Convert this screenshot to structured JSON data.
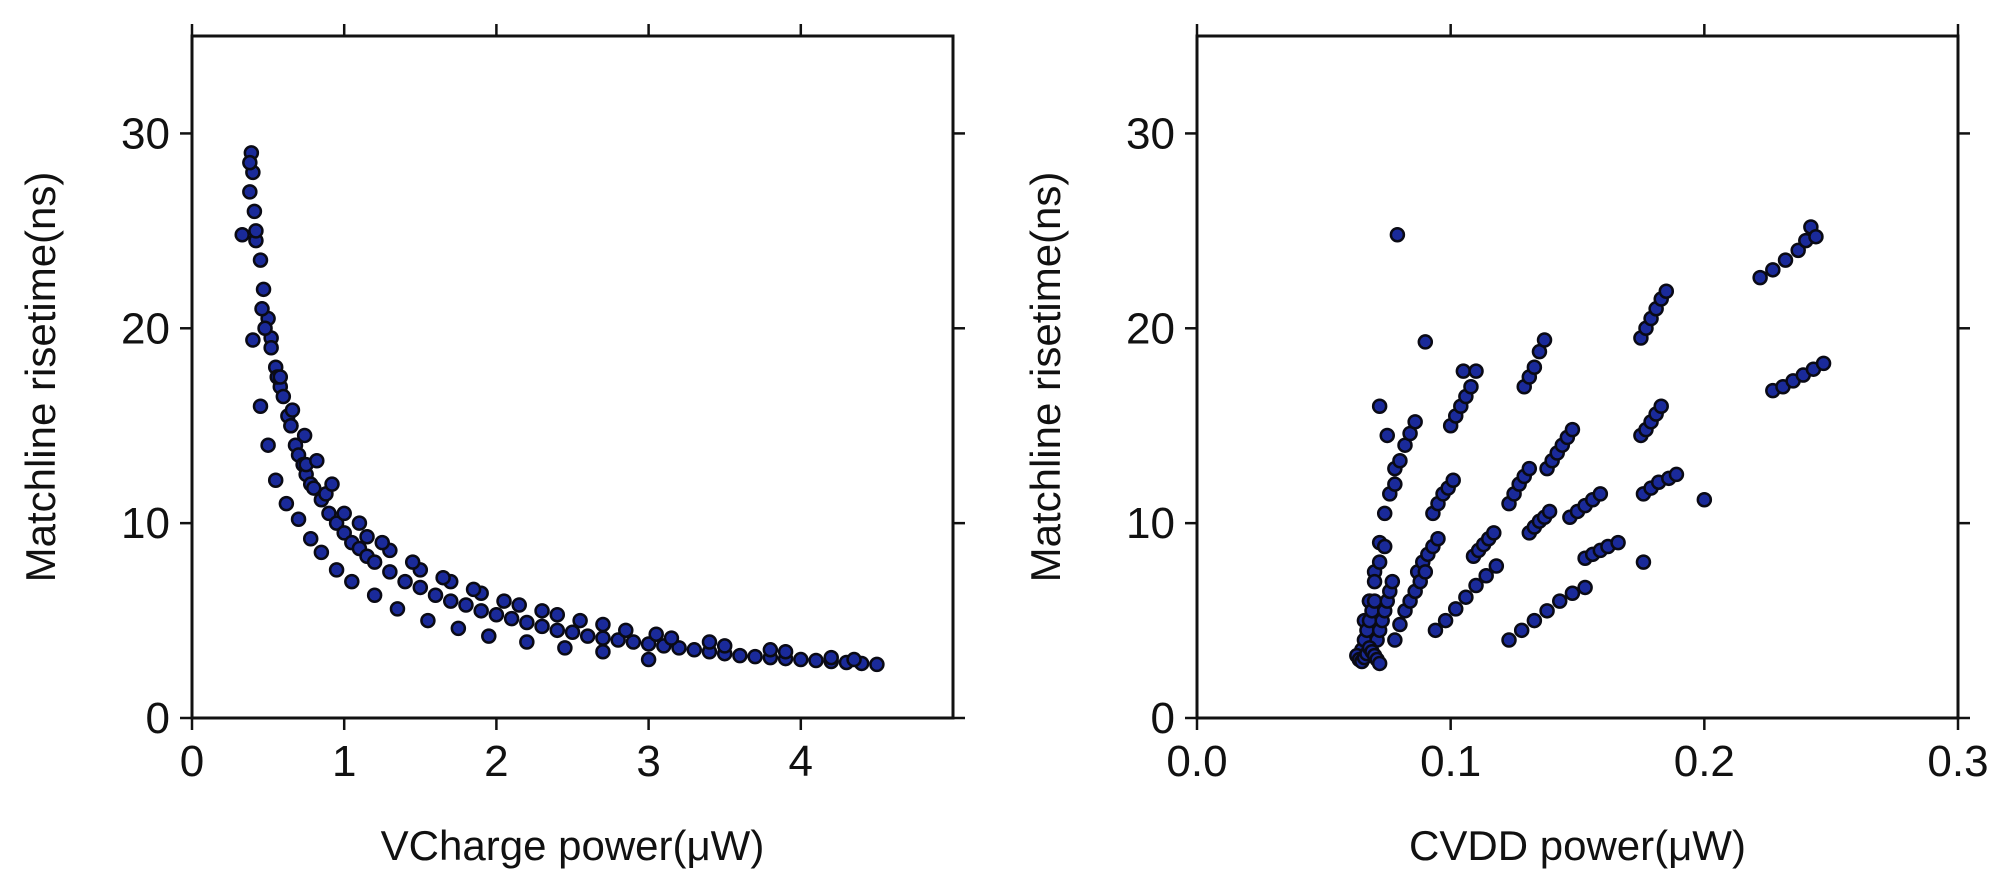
{
  "chart_data": [
    {
      "type": "scatter",
      "title": "",
      "xlabel": "VCharge power(μW)",
      "ylabel": "Matchline risetime(ns)",
      "xlim": [
        0,
        5
      ],
      "ylim": [
        0,
        35
      ],
      "xticks": [
        0,
        1,
        2,
        3,
        4
      ],
      "xtick_labels": [
        "0",
        "1",
        "2",
        "3",
        "4"
      ],
      "yticks": [
        0,
        10,
        20,
        30
      ],
      "ytick_labels": [
        "0",
        "10",
        "20",
        "30"
      ],
      "grid": false,
      "marker_fill": "#1a2a9a",
      "marker_edge": "#0a0a14",
      "series": [
        {
          "name": "points",
          "x": [
            0.33,
            0.38,
            0.39,
            0.4,
            0.41,
            0.42,
            0.45,
            0.47,
            0.5,
            0.52,
            0.55,
            0.58,
            0.6,
            0.63,
            0.65,
            0.68,
            0.7,
            0.73,
            0.75,
            0.78,
            0.8,
            0.85,
            0.9,
            0.95,
            1.0,
            1.05,
            1.1,
            1.15,
            1.2,
            1.3,
            1.4,
            1.5,
            1.6,
            1.7,
            1.8,
            1.9,
            2.0,
            2.1,
            2.2,
            2.3,
            2.4,
            2.5,
            2.6,
            2.7,
            2.8,
            2.9,
            3.0,
            3.1,
            3.2,
            3.3,
            3.4,
            3.5,
            3.6,
            3.7,
            3.8,
            3.9,
            4.0,
            4.1,
            4.2,
            4.3,
            4.4,
            4.5,
            0.4,
            0.45,
            0.5,
            0.55,
            0.62,
            0.7,
            0.78,
            0.85,
            0.95,
            1.05,
            1.2,
            1.35,
            1.55,
            1.75,
            1.95,
            2.2,
            2.45,
            2.7,
            3.0,
            0.48,
            0.56,
            0.65,
            0.75,
            0.88,
            1.0,
            1.15,
            1.3,
            1.5,
            1.7,
            1.9,
            2.15,
            2.4,
            2.7,
            3.05,
            3.4,
            3.8,
            4.2,
            0.38,
            0.42,
            0.46,
            0.52,
            0.58,
            0.66,
            0.74,
            0.82,
            0.92,
            1.1,
            1.25,
            1.45,
            1.65,
            1.85,
            2.05,
            2.3,
            2.55,
            2.85,
            3.15,
            3.5,
            3.9,
            4.35
          ],
          "y": [
            24.8,
            27.0,
            29.0,
            28.0,
            26.0,
            24.5,
            23.5,
            22.0,
            20.5,
            19.5,
            18.0,
            17.0,
            16.5,
            15.5,
            15.0,
            14.0,
            13.5,
            13.0,
            12.5,
            12.0,
            11.8,
            11.2,
            10.5,
            10.0,
            9.5,
            9.0,
            8.7,
            8.3,
            8.0,
            7.5,
            7.0,
            6.7,
            6.3,
            6.0,
            5.8,
            5.5,
            5.3,
            5.1,
            4.9,
            4.7,
            4.5,
            4.4,
            4.2,
            4.1,
            4.0,
            3.9,
            3.8,
            3.7,
            3.6,
            3.5,
            3.4,
            3.3,
            3.2,
            3.15,
            3.1,
            3.05,
            3.0,
            2.95,
            2.9,
            2.85,
            2.8,
            2.75,
            19.4,
            16.0,
            14.0,
            12.2,
            11.0,
            10.2,
            9.2,
            8.5,
            7.6,
            7.0,
            6.3,
            5.6,
            5.0,
            4.6,
            4.2,
            3.9,
            3.6,
            3.4,
            3.0,
            20.0,
            17.5,
            15.0,
            13.0,
            11.5,
            10.5,
            9.3,
            8.6,
            7.6,
            7.0,
            6.4,
            5.8,
            5.3,
            4.8,
            4.3,
            3.9,
            3.5,
            3.1,
            28.5,
            25.0,
            21.0,
            19.0,
            17.5,
            15.8,
            14.5,
            13.2,
            12.0,
            10.0,
            9.0,
            8.0,
            7.2,
            6.6,
            6.0,
            5.5,
            5.0,
            4.5,
            4.1,
            3.7,
            3.4,
            3.0
          ]
        }
      ]
    },
    {
      "type": "scatter",
      "title": "",
      "xlabel": "CVDD power(μW)",
      "ylabel": "Matchline risetime(ns)",
      "xlim": [
        0,
        0.3
      ],
      "ylim": [
        0,
        35
      ],
      "xticks": [
        0,
        0.1,
        0.2,
        0.3
      ],
      "xtick_labels": [
        "0.0",
        "0.1",
        "0.2",
        "0.3"
      ],
      "yticks": [
        0,
        10,
        20,
        30
      ],
      "ytick_labels": [
        "0",
        "10",
        "20",
        "30"
      ],
      "grid": false,
      "marker_fill": "#1a2a9a",
      "marker_edge": "#0a0a14",
      "series": [
        {
          "name": "points",
          "x": [
            0.079,
            0.09,
            0.105,
            0.129,
            0.131,
            0.133,
            0.135,
            0.137,
            0.175,
            0.177,
            0.179,
            0.181,
            0.183,
            0.185,
            0.222,
            0.227,
            0.232,
            0.237,
            0.24,
            0.242,
            0.244,
            0.072,
            0.075,
            0.078,
            0.08,
            0.082,
            0.084,
            0.086,
            0.1,
            0.102,
            0.104,
            0.106,
            0.108,
            0.11,
            0.138,
            0.14,
            0.142,
            0.144,
            0.146,
            0.148,
            0.175,
            0.177,
            0.179,
            0.181,
            0.183,
            0.227,
            0.231,
            0.235,
            0.239,
            0.243,
            0.247,
            0.068,
            0.07,
            0.072,
            0.074,
            0.076,
            0.078,
            0.093,
            0.095,
            0.097,
            0.099,
            0.101,
            0.123,
            0.125,
            0.127,
            0.129,
            0.131,
            0.147,
            0.15,
            0.153,
            0.156,
            0.159,
            0.176,
            0.179,
            0.182,
            0.186,
            0.189,
            0.2,
            0.066,
            0.068,
            0.07,
            0.072,
            0.074,
            0.087,
            0.089,
            0.091,
            0.093,
            0.095,
            0.109,
            0.111,
            0.113,
            0.115,
            0.117,
            0.131,
            0.133,
            0.135,
            0.137,
            0.139,
            0.153,
            0.156,
            0.159,
            0.162,
            0.166,
            0.176,
            0.064,
            0.065,
            0.066,
            0.067,
            0.068,
            0.069,
            0.07,
            0.071,
            0.072,
            0.073,
            0.074,
            0.075,
            0.076,
            0.077,
            0.078,
            0.08,
            0.082,
            0.084,
            0.086,
            0.088,
            0.09,
            0.094,
            0.098,
            0.102,
            0.106,
            0.11,
            0.114,
            0.118,
            0.123,
            0.128,
            0.133,
            0.138,
            0.143,
            0.148,
            0.153,
            0.063,
            0.064,
            0.065,
            0.066,
            0.067,
            0.068,
            0.069,
            0.07,
            0.071,
            0.072
          ],
          "y": [
            24.8,
            19.3,
            17.8,
            17.0,
            17.5,
            18.0,
            18.8,
            19.4,
            19.5,
            20.0,
            20.5,
            21.0,
            21.5,
            21.9,
            22.6,
            23.0,
            23.5,
            24.0,
            24.5,
            25.2,
            24.7,
            16.0,
            14.5,
            12.8,
            13.2,
            14.0,
            14.6,
            15.2,
            15.0,
            15.5,
            16.0,
            16.5,
            17.0,
            17.8,
            12.8,
            13.2,
            13.6,
            14.0,
            14.4,
            14.8,
            14.5,
            14.8,
            15.2,
            15.6,
            16.0,
            16.8,
            17.0,
            17.3,
            17.6,
            17.9,
            18.2,
            6.0,
            7.5,
            9.0,
            10.5,
            11.5,
            12.0,
            10.5,
            11.0,
            11.5,
            11.8,
            12.2,
            11.0,
            11.5,
            12.0,
            12.4,
            12.8,
            10.3,
            10.6,
            10.9,
            11.2,
            11.5,
            11.5,
            11.8,
            12.1,
            12.3,
            12.5,
            11.2,
            5.0,
            6.0,
            7.0,
            8.0,
            8.8,
            7.5,
            8.0,
            8.4,
            8.8,
            9.2,
            8.3,
            8.6,
            8.9,
            9.2,
            9.5,
            9.5,
            9.8,
            10.1,
            10.3,
            10.6,
            8.2,
            8.4,
            8.6,
            8.8,
            9.0,
            8.0,
            3.0,
            3.5,
            4.0,
            4.5,
            5.0,
            5.5,
            6.0,
            4.0,
            4.5,
            5.0,
            5.5,
            6.0,
            6.5,
            7.0,
            4.0,
            4.8,
            5.5,
            6.0,
            6.5,
            7.0,
            7.5,
            4.5,
            5.0,
            5.6,
            6.2,
            6.8,
            7.3,
            7.8,
            4.0,
            4.5,
            5.0,
            5.5,
            6.0,
            6.4,
            6.7,
            3.2,
            3.0,
            2.9,
            3.1,
            3.3,
            3.6,
            3.4,
            3.2,
            3.0,
            2.8
          ]
        }
      ]
    }
  ]
}
